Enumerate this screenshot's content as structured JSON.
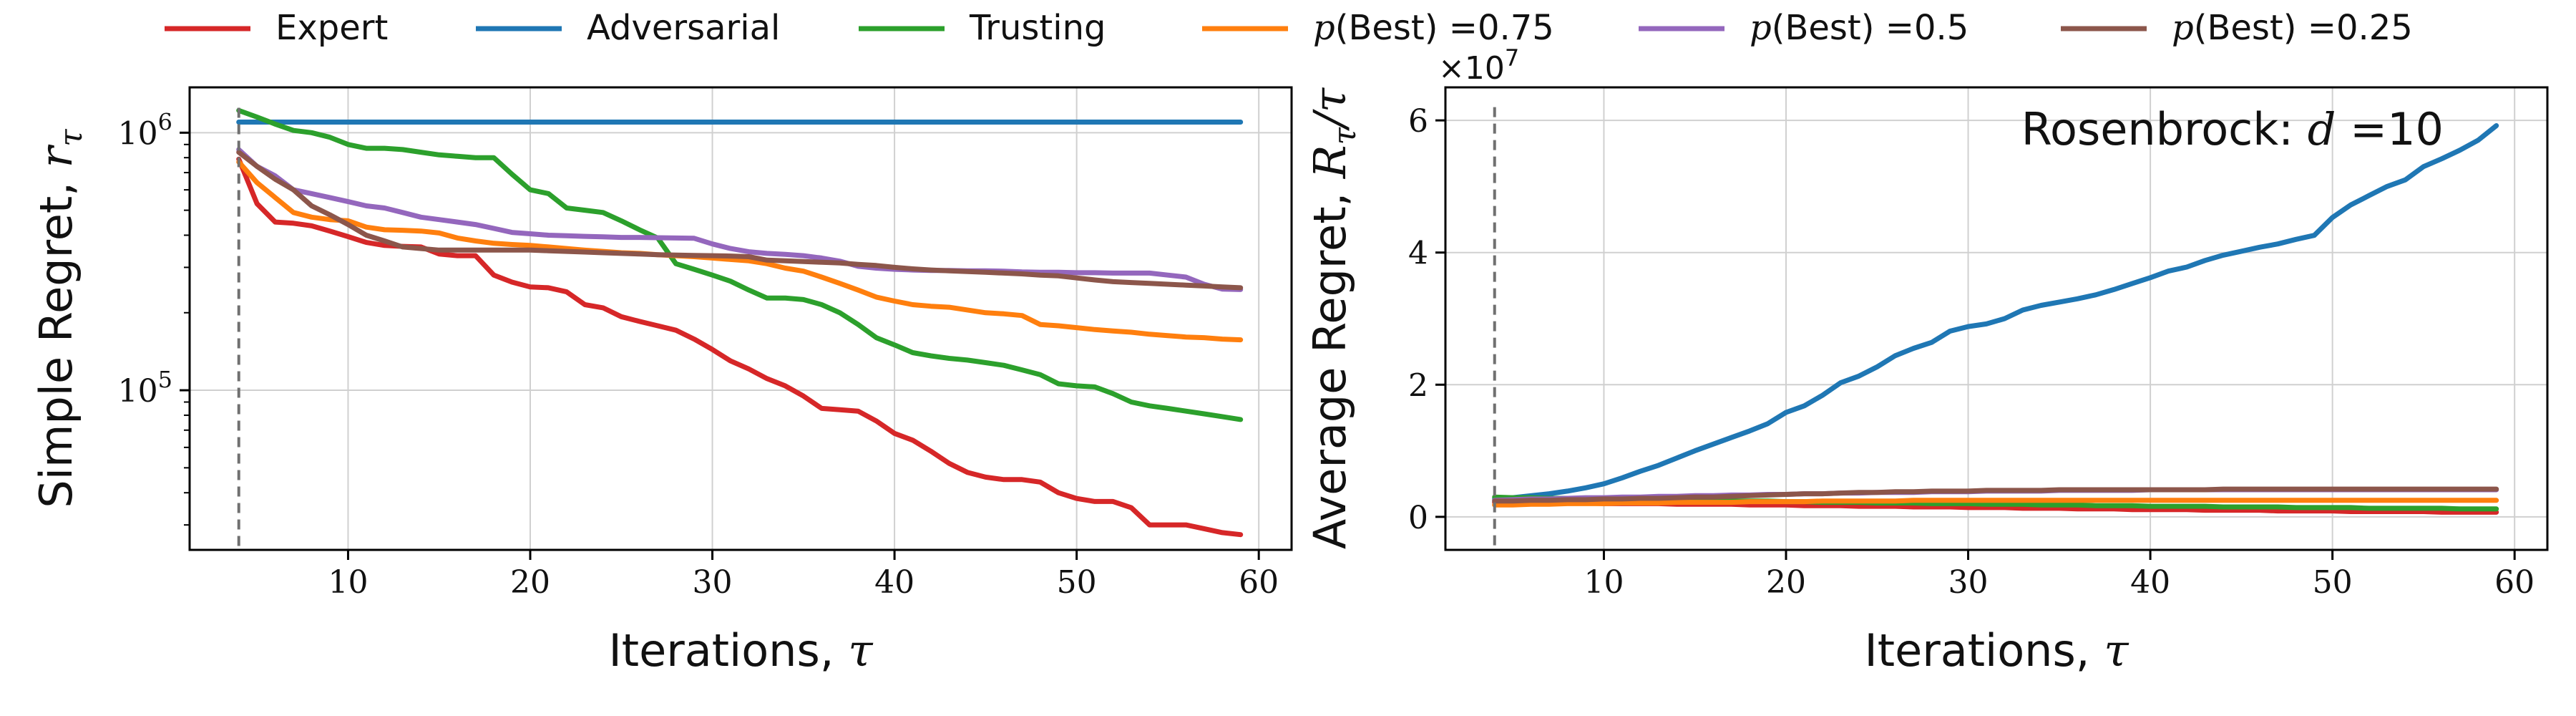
{
  "legend": {
    "placement": "top",
    "entries": [
      {
        "label": "Expert",
        "color": "#d62728"
      },
      {
        "label": "Adversarial",
        "color": "#1f77b4"
      },
      {
        "label": "Trusting",
        "color": "#2ca02c"
      },
      {
        "label": "p(Best) =0.75",
        "color": "#ff7f0e"
      },
      {
        "label": "p(Best) =0.5",
        "color": "#9467bd"
      },
      {
        "label": "p(Best) =0.25",
        "color": "#8c564b"
      }
    ]
  },
  "chart_data": [
    {
      "type": "line",
      "ylabel": "Simple Regret, r_τ",
      "xlabel": "Iterations, τ",
      "xlim": [
        1.3,
        61.8
      ],
      "ylim": [
        24000,
        1500000
      ],
      "yscale": "log",
      "grid": true,
      "xticks": [
        10,
        20,
        30,
        40,
        50,
        60
      ],
      "yticks": [
        {
          "value": 100000,
          "label": "10^5"
        },
        {
          "value": 1000000,
          "label": "10^6"
        }
      ],
      "vline": 4,
      "x": [
        4,
        5,
        6,
        7,
        8,
        9,
        10,
        11,
        12,
        13,
        14,
        15,
        16,
        17,
        18,
        19,
        20,
        21,
        22,
        23,
        24,
        25,
        26,
        27,
        28,
        29,
        30,
        31,
        32,
        33,
        34,
        35,
        36,
        37,
        38,
        39,
        40,
        41,
        42,
        43,
        44,
        45,
        46,
        47,
        48,
        49,
        50,
        51,
        52,
        53,
        54,
        55,
        56,
        57,
        58,
        59
      ],
      "series": [
        {
          "name": "Expert",
          "color": "#d62728",
          "values": [
            790000,
            530000,
            450000,
            445000,
            435000,
            415000,
            395000,
            375000,
            365000,
            362000,
            360000,
            338000,
            333000,
            333000,
            280000,
            263000,
            252000,
            250000,
            241000,
            215000,
            209000,
            193000,
            185000,
            178000,
            171000,
            158000,
            144000,
            130000,
            121000,
            111000,
            104000,
            95000,
            85000,
            84000,
            83000,
            76000,
            68000,
            64000,
            58000,
            52000,
            48000,
            46000,
            45000,
            45000,
            44000,
            40000,
            38000,
            37000,
            37000,
            35000,
            30000,
            30000,
            30000,
            29000,
            28000,
            27500
          ]
        },
        {
          "name": "Adversarial",
          "color": "#1f77b4",
          "values": [
            1100000,
            1100000,
            1100000,
            1100000,
            1100000,
            1100000,
            1100000,
            1100000,
            1100000,
            1100000,
            1100000,
            1100000,
            1100000,
            1100000,
            1100000,
            1100000,
            1100000,
            1100000,
            1100000,
            1100000,
            1100000,
            1100000,
            1100000,
            1100000,
            1100000,
            1100000,
            1100000,
            1100000,
            1100000,
            1100000,
            1100000,
            1100000,
            1100000,
            1100000,
            1100000,
            1100000,
            1100000,
            1100000,
            1100000,
            1100000,
            1100000,
            1100000,
            1100000,
            1100000,
            1100000,
            1100000,
            1100000,
            1100000,
            1100000,
            1100000,
            1100000,
            1100000,
            1100000,
            1100000,
            1100000,
            1100000
          ]
        },
        {
          "name": "Trusting",
          "color": "#2ca02c",
          "values": [
            1220000,
            1150000,
            1080000,
            1020000,
            1000000,
            960000,
            900000,
            870000,
            870000,
            860000,
            840000,
            820000,
            810000,
            800000,
            800000,
            690000,
            600000,
            580000,
            510000,
            500000,
            490000,
            455000,
            420000,
            390000,
            310000,
            295000,
            280000,
            265000,
            245000,
            228000,
            228000,
            225000,
            215000,
            200000,
            180000,
            160000,
            150000,
            140000,
            136000,
            133000,
            131000,
            128000,
            125000,
            120000,
            115000,
            106000,
            104000,
            103000,
            97000,
            90000,
            87000,
            85000,
            83000,
            81000,
            79000,
            77000
          ]
        },
        {
          "name": "p(Best) =0.75",
          "color": "#ff7f0e",
          "values": [
            770000,
            640000,
            560000,
            490000,
            470000,
            460000,
            455000,
            430000,
            420000,
            418000,
            415000,
            408000,
            390000,
            380000,
            372000,
            368000,
            365000,
            360000,
            355000,
            350000,
            346000,
            342000,
            340000,
            336000,
            333000,
            330000,
            326000,
            322000,
            318000,
            310000,
            298000,
            290000,
            275000,
            260000,
            245000,
            230000,
            222000,
            215000,
            212000,
            210000,
            205000,
            200000,
            198000,
            195000,
            180000,
            178000,
            175000,
            172000,
            170000,
            168000,
            165000,
            163000,
            161000,
            160000,
            158000,
            157000
          ]
        },
        {
          "name": "p(Best) =0.5",
          "color": "#9467bd",
          "values": [
            860000,
            740000,
            680000,
            600000,
            580000,
            560000,
            540000,
            520000,
            510000,
            490000,
            470000,
            460000,
            450000,
            440000,
            425000,
            410000,
            405000,
            400000,
            398000,
            396000,
            394000,
            392000,
            392000,
            391000,
            390000,
            389000,
            370000,
            355000,
            345000,
            340000,
            337000,
            333000,
            326000,
            317000,
            303000,
            298000,
            295000,
            293000,
            292000,
            292000,
            291000,
            291000,
            290000,
            288000,
            287000,
            287000,
            286000,
            286000,
            285000,
            285000,
            285000,
            280000,
            275000,
            258000,
            247000,
            246000
          ]
        },
        {
          "name": "p(Best) =0.25",
          "color": "#8c564b",
          "values": [
            840000,
            740000,
            660000,
            600000,
            520000,
            480000,
            440000,
            400000,
            380000,
            360000,
            355000,
            350000,
            350000,
            350000,
            350000,
            350000,
            350000,
            348000,
            346000,
            344000,
            342000,
            340000,
            338000,
            336000,
            335000,
            334000,
            333000,
            332000,
            330000,
            320000,
            318000,
            316000,
            314000,
            312000,
            308000,
            305000,
            300000,
            296000,
            293000,
            291000,
            289000,
            287000,
            285000,
            283000,
            280000,
            278000,
            273000,
            268000,
            264000,
            262000,
            260000,
            258000,
            256000,
            254000,
            252000,
            250000
          ]
        }
      ]
    },
    {
      "type": "line",
      "ylabel": "Average Regret, R_τ/τ",
      "xlabel": "Iterations, τ",
      "xlim": [
        1.3,
        61.8
      ],
      "ylim": [
        -0.5,
        6.5
      ],
      "yscale": "linear",
      "scale_label": "×10^7",
      "grid": true,
      "xticks": [
        10,
        20,
        30,
        40,
        50,
        60
      ],
      "yticks": [
        {
          "value": 0,
          "label": "0"
        },
        {
          "value": 2,
          "label": "2"
        },
        {
          "value": 4,
          "label": "4"
        },
        {
          "value": 6,
          "label": "6"
        }
      ],
      "vline": 4,
      "annotation": {
        "text": "Rosenbrock:",
        "math": "d",
        "suffix": " =10"
      },
      "x": [
        4,
        5,
        6,
        7,
        8,
        9,
        10,
        11,
        12,
        13,
        14,
        15,
        16,
        17,
        18,
        19,
        20,
        21,
        22,
        23,
        24,
        25,
        26,
        27,
        28,
        29,
        30,
        31,
        32,
        33,
        34,
        35,
        36,
        37,
        38,
        39,
        40,
        41,
        42,
        43,
        44,
        45,
        46,
        47,
        48,
        49,
        50,
        51,
        52,
        53,
        54,
        55,
        56,
        57,
        58,
        59
      ],
      "series": [
        {
          "name": "Expert",
          "color": "#d62728",
          "values": [
            0.22,
            0.22,
            0.21,
            0.21,
            0.21,
            0.21,
            0.2,
            0.2,
            0.2,
            0.2,
            0.19,
            0.19,
            0.19,
            0.19,
            0.18,
            0.18,
            0.18,
            0.17,
            0.17,
            0.17,
            0.16,
            0.16,
            0.16,
            0.15,
            0.15,
            0.15,
            0.14,
            0.14,
            0.14,
            0.13,
            0.13,
            0.13,
            0.12,
            0.12,
            0.12,
            0.11,
            0.11,
            0.11,
            0.11,
            0.1,
            0.1,
            0.1,
            0.1,
            0.09,
            0.09,
            0.09,
            0.09,
            0.08,
            0.08,
            0.08,
            0.08,
            0.08,
            0.07,
            0.07,
            0.07,
            0.07
          ]
        },
        {
          "name": "Adversarial",
          "color": "#1f77b4",
          "values": [
            0.27,
            0.29,
            0.32,
            0.35,
            0.39,
            0.44,
            0.5,
            0.59,
            0.69,
            0.78,
            0.89,
            1.0,
            1.1,
            1.2,
            1.3,
            1.41,
            1.58,
            1.68,
            1.84,
            2.03,
            2.13,
            2.27,
            2.44,
            2.55,
            2.64,
            2.81,
            2.88,
            2.92,
            3.0,
            3.13,
            3.2,
            3.25,
            3.3,
            3.36,
            3.44,
            3.53,
            3.62,
            3.72,
            3.78,
            3.88,
            3.96,
            4.02,
            4.08,
            4.13,
            4.2,
            4.26,
            4.53,
            4.72,
            4.86,
            5.0,
            5.1,
            5.3,
            5.42,
            5.55,
            5.7,
            5.92
          ]
        },
        {
          "name": "Trusting",
          "color": "#2ca02c",
          "values": [
            0.3,
            0.29,
            0.29,
            0.28,
            0.28,
            0.28,
            0.27,
            0.27,
            0.26,
            0.26,
            0.25,
            0.25,
            0.25,
            0.24,
            0.24,
            0.24,
            0.23,
            0.23,
            0.22,
            0.22,
            0.22,
            0.21,
            0.21,
            0.21,
            0.2,
            0.2,
            0.2,
            0.19,
            0.19,
            0.19,
            0.18,
            0.18,
            0.18,
            0.17,
            0.17,
            0.17,
            0.16,
            0.16,
            0.16,
            0.16,
            0.15,
            0.15,
            0.15,
            0.15,
            0.14,
            0.14,
            0.14,
            0.14,
            0.13,
            0.13,
            0.13,
            0.13,
            0.13,
            0.12,
            0.12,
            0.12
          ]
        },
        {
          "name": "p(Best) =0.75",
          "color": "#ff7f0e",
          "values": [
            0.18,
            0.18,
            0.19,
            0.19,
            0.2,
            0.2,
            0.2,
            0.21,
            0.21,
            0.21,
            0.22,
            0.22,
            0.22,
            0.22,
            0.23,
            0.23,
            0.23,
            0.23,
            0.24,
            0.24,
            0.24,
            0.24,
            0.24,
            0.25,
            0.25,
            0.25,
            0.25,
            0.25,
            0.25,
            0.25,
            0.25,
            0.25,
            0.25,
            0.25,
            0.25,
            0.25,
            0.25,
            0.25,
            0.25,
            0.25,
            0.25,
            0.25,
            0.25,
            0.25,
            0.25,
            0.25,
            0.25,
            0.25,
            0.25,
            0.25,
            0.25,
            0.25,
            0.25,
            0.25,
            0.25,
            0.25
          ]
        },
        {
          "name": "p(Best) =0.5",
          "color": "#9467bd",
          "values": [
            0.25,
            0.26,
            0.27,
            0.27,
            0.28,
            0.29,
            0.29,
            0.3,
            0.3,
            0.31,
            0.31,
            0.32,
            0.32,
            0.33,
            0.33,
            0.34,
            0.34,
            0.35,
            0.35,
            0.36,
            0.36,
            0.37,
            0.37,
            0.37,
            0.38,
            0.38,
            0.38,
            0.39,
            0.39,
            0.39,
            0.39,
            0.4,
            0.4,
            0.4,
            0.4,
            0.4,
            0.41,
            0.41,
            0.41,
            0.41,
            0.41,
            0.41,
            0.41,
            0.41,
            0.41,
            0.41,
            0.41,
            0.41,
            0.41,
            0.41,
            0.41,
            0.41,
            0.41,
            0.41,
            0.41,
            0.41
          ]
        },
        {
          "name": "p(Best) =0.25",
          "color": "#8c564b",
          "values": [
            0.24,
            0.24,
            0.25,
            0.25,
            0.26,
            0.26,
            0.27,
            0.27,
            0.28,
            0.28,
            0.29,
            0.3,
            0.3,
            0.31,
            0.32,
            0.33,
            0.34,
            0.35,
            0.35,
            0.36,
            0.37,
            0.37,
            0.38,
            0.38,
            0.39,
            0.39,
            0.39,
            0.4,
            0.4,
            0.4,
            0.4,
            0.41,
            0.41,
            0.41,
            0.41,
            0.41,
            0.41,
            0.41,
            0.41,
            0.41,
            0.42,
            0.42,
            0.42,
            0.42,
            0.42,
            0.42,
            0.42,
            0.42,
            0.42,
            0.42,
            0.42,
            0.42,
            0.42,
            0.42,
            0.42,
            0.42
          ]
        }
      ]
    }
  ]
}
